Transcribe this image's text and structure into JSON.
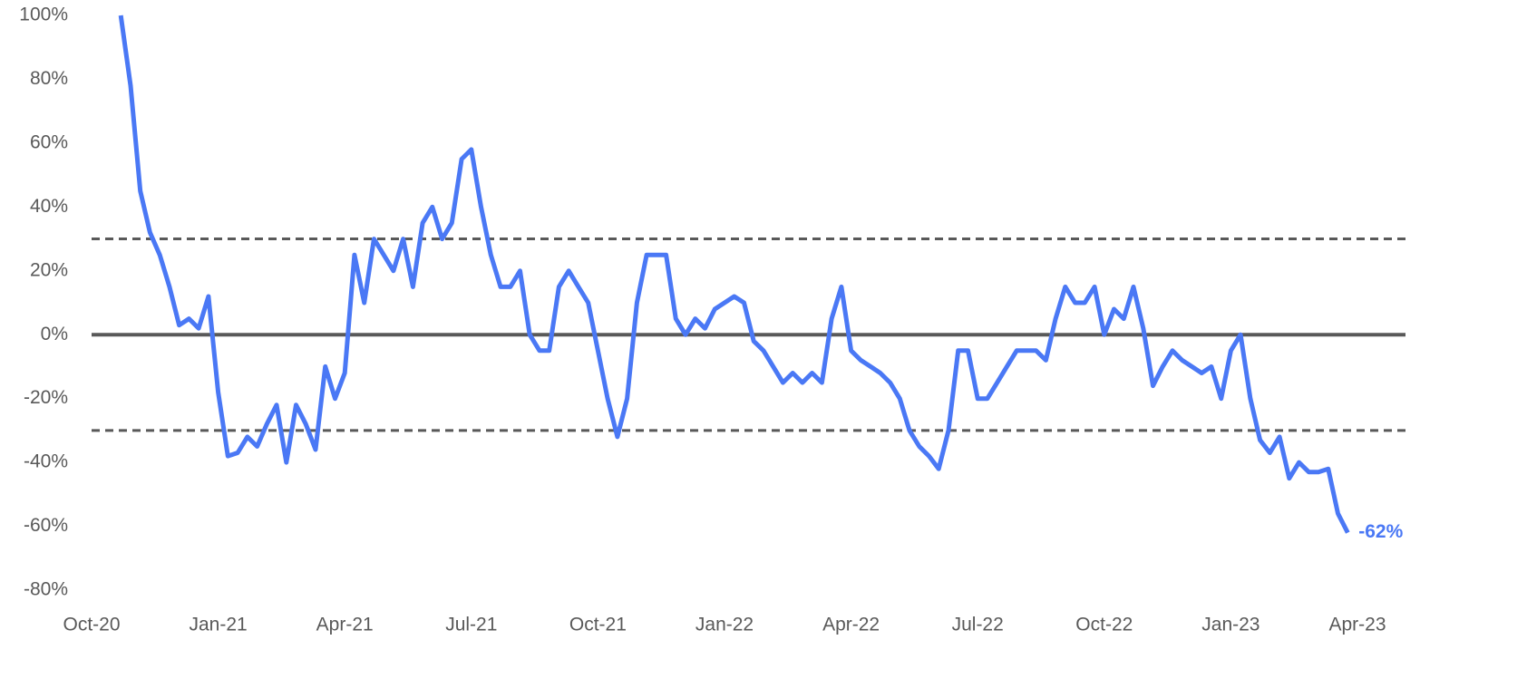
{
  "chart_data": {
    "type": "line",
    "categories": [
      "Oct-20",
      null,
      null,
      null,
      null,
      null,
      null,
      null,
      null,
      null,
      null,
      null,
      null,
      "Jan-21",
      null,
      null,
      null,
      null,
      null,
      null,
      null,
      null,
      null,
      null,
      null,
      null,
      "Apr-21",
      null,
      null,
      null,
      null,
      null,
      null,
      null,
      null,
      null,
      null,
      null,
      null,
      "Jul-21",
      null,
      null,
      null,
      null,
      null,
      null,
      null,
      null,
      null,
      null,
      null,
      null,
      "Oct-21",
      null,
      null,
      null,
      null,
      null,
      null,
      null,
      null,
      null,
      null,
      null,
      null,
      "Jan-22",
      null,
      null,
      null,
      null,
      null,
      null,
      null,
      null,
      null,
      null,
      null,
      null,
      "Apr-22",
      null,
      null,
      null,
      null,
      null,
      null,
      null,
      null,
      null,
      null,
      null,
      null,
      "Jul-22",
      null,
      null,
      null,
      null,
      null,
      null,
      null,
      null,
      null,
      null,
      null,
      null,
      "Oct-22",
      null,
      null,
      null,
      null,
      null,
      null,
      null,
      null,
      null,
      null,
      null,
      null,
      "Jan-23",
      null,
      null,
      null,
      null,
      null,
      null,
      null,
      null,
      null,
      null,
      null,
      null,
      "Apr-23"
    ],
    "series": [
      {
        "color": "#4a78f5",
        "values": [
          null,
          null,
          null,
          100,
          78,
          45,
          32,
          25,
          15,
          3,
          5,
          2,
          12,
          -18,
          -38,
          -37,
          -32,
          -35,
          -28,
          -22,
          -40,
          -22,
          -28,
          -36,
          -10,
          -20,
          -12,
          25,
          10,
          30,
          25,
          20,
          30,
          15,
          35,
          40,
          30,
          35,
          55,
          58,
          40,
          25,
          15,
          15,
          20,
          0,
          -5,
          -5,
          15,
          20,
          15,
          10,
          -5,
          -20,
          -32,
          -20,
          10,
          25,
          25,
          25,
          5,
          0,
          5,
          2,
          8,
          10,
          12,
          10,
          -2,
          -5,
          -10,
          -15,
          -12,
          -15,
          -12,
          -15,
          5,
          15,
          -5,
          -8,
          -10,
          -12,
          -15,
          -20,
          -30,
          -35,
          -38,
          -42,
          -30,
          -5,
          -5,
          -20,
          -20,
          -15,
          -10,
          -5,
          -5,
          -5,
          -8,
          5,
          15,
          10,
          10,
          15,
          0,
          8,
          5,
          15,
          2,
          -16,
          -10,
          -5,
          -8,
          -10,
          -12,
          -10,
          -20,
          -5,
          0,
          -20,
          -33,
          -37,
          -32,
          -45,
          -40,
          -43,
          -43,
          -42,
          -56,
          -62,
          null
        ],
        "value_labels": [
          null,
          null,
          null,
          null,
          null,
          null,
          null,
          null,
          null,
          null,
          null,
          null,
          null,
          null,
          null,
          null,
          null,
          null,
          null,
          null,
          null,
          null,
          null,
          null,
          null,
          null,
          null,
          null,
          null,
          null,
          null,
          null,
          null,
          null,
          null,
          null,
          null,
          null,
          null,
          null,
          null,
          null,
          null,
          null,
          null,
          null,
          null,
          null,
          null,
          null,
          null,
          null,
          null,
          null,
          null,
          null,
          null,
          null,
          null,
          null,
          null,
          null,
          null,
          null,
          null,
          null,
          null,
          null,
          null,
          null,
          null,
          null,
          null,
          null,
          null,
          null,
          null,
          null,
          null,
          null,
          null,
          null,
          null,
          null,
          null,
          null,
          null,
          null,
          null,
          null,
          null,
          null,
          null,
          null,
          null,
          null,
          null,
          null,
          null,
          null,
          null,
          null,
          null,
          null,
          null,
          null,
          null,
          null,
          null,
          null,
          null,
          null,
          null,
          null,
          null,
          null,
          null,
          null,
          null,
          null,
          null,
          null,
          null,
          null,
          null,
          null,
          null,
          null,
          null,
          "-62%",
          null
        ]
      }
    ],
    "ylim": [
      -80,
      100
    ],
    "yticks": [
      {
        "value": -80,
        "label": "-80%"
      },
      {
        "value": -60,
        "label": "-60%"
      },
      {
        "value": -40,
        "label": "-40%"
      },
      {
        "value": -20,
        "label": "-20%"
      },
      {
        "value": 0,
        "label": "0%"
      },
      {
        "value": 20,
        "label": "20%"
      },
      {
        "value": 40,
        "label": "40%"
      },
      {
        "value": 60,
        "label": "60%"
      },
      {
        "value": 80,
        "label": "80%"
      },
      {
        "value": 100,
        "label": "100%"
      }
    ],
    "reference_lines": [
      {
        "value": 30,
        "style": "dashed"
      },
      {
        "value": 0,
        "style": "solid"
      },
      {
        "value": -30,
        "style": "dashed"
      }
    ]
  }
}
